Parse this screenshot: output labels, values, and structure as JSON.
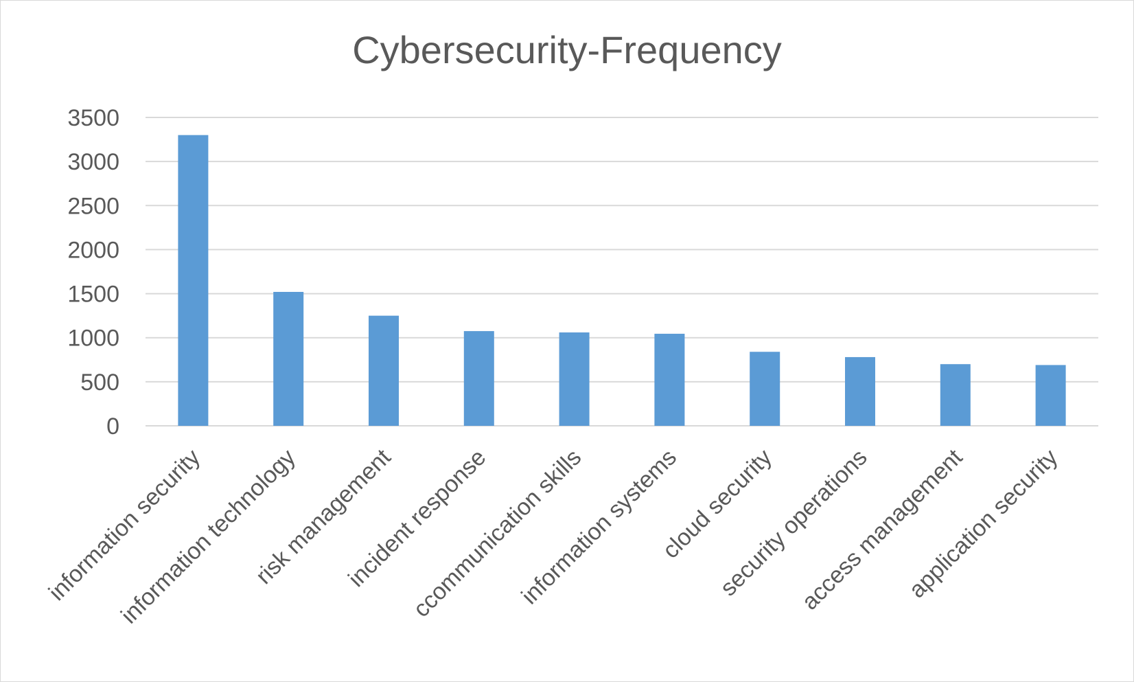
{
  "chart_data": {
    "type": "bar",
    "title": "Cybersecurity-Frequency",
    "xlabel": "",
    "ylabel": "",
    "categories": [
      "information security",
      "information technology",
      "risk management",
      "incident response",
      "ccommunication skills",
      "information systems",
      "cloud security",
      "security operations",
      "access management",
      "application security"
    ],
    "values": [
      3300,
      1520,
      1250,
      1075,
      1060,
      1045,
      840,
      780,
      700,
      690
    ],
    "ylim": [
      0,
      3500
    ],
    "yticks": [
      "0",
      "500",
      "1000",
      "1500",
      "2000",
      "2500",
      "3000",
      "3500"
    ],
    "grid": true,
    "legend": "none",
    "bar_color": "#5b9bd5",
    "gridline_color": "#d9d9d9",
    "text_color": "#595959"
  }
}
